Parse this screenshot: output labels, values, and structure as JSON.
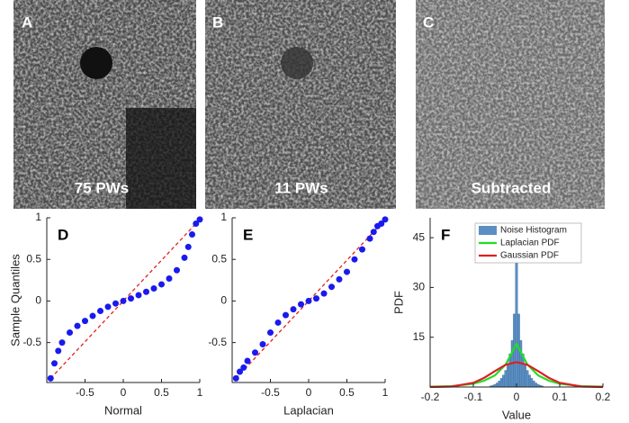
{
  "images": [
    {
      "letter": "A",
      "caption": "75 PWs"
    },
    {
      "letter": "B",
      "caption": "11 PWs"
    },
    {
      "letter": "C",
      "caption": "Subtracted"
    }
  ],
  "chart_data": [
    {
      "type": "scatter",
      "title": "D",
      "x_label": "Normal",
      "y_label": "Sample Quantiles",
      "color": "#1a1aee",
      "x": [
        -0.95,
        -0.9,
        -0.85,
        -0.8,
        -0.7,
        -0.6,
        -0.5,
        -0.4,
        -0.3,
        -0.2,
        -0.1,
        0,
        0.1,
        0.2,
        0.3,
        0.4,
        0.5,
        0.6,
        0.7,
        0.8,
        0.85,
        0.9,
        0.95,
        1
      ],
      "values": [
        -0.93,
        -0.75,
        -0.6,
        -0.5,
        -0.38,
        -0.3,
        -0.24,
        -0.18,
        -0.12,
        -0.07,
        -0.03,
        0,
        0.03,
        0.07,
        0.11,
        0.15,
        0.2,
        0.27,
        0.37,
        0.52,
        0.65,
        0.8,
        0.93,
        0.98
      ],
      "reference_line": {
        "x": [
          -0.95,
          0.95
        ],
        "values": [
          -0.93,
          0.93
        ],
        "color": "#e02020"
      },
      "xlim": [
        -1,
        1
      ],
      "ylim": [
        -0.98,
        1
      ],
      "xticks": [
        -0.5,
        0,
        0.5,
        1
      ],
      "yticks": [
        -0.5,
        0,
        0.5,
        1
      ]
    },
    {
      "type": "scatter",
      "title": "E",
      "x_label": "Laplacian",
      "color": "#1a1aee",
      "x": [
        -0.95,
        -0.9,
        -0.85,
        -0.8,
        -0.7,
        -0.6,
        -0.5,
        -0.4,
        -0.3,
        -0.2,
        -0.1,
        0,
        0.1,
        0.2,
        0.3,
        0.4,
        0.5,
        0.6,
        0.7,
        0.8,
        0.85,
        0.9,
        0.95,
        1
      ],
      "values": [
        -0.93,
        -0.85,
        -0.8,
        -0.72,
        -0.62,
        -0.52,
        -0.38,
        -0.26,
        -0.17,
        -0.1,
        -0.04,
        0,
        0.03,
        0.09,
        0.17,
        0.26,
        0.35,
        0.5,
        0.62,
        0.75,
        0.83,
        0.9,
        0.93,
        0.98
      ],
      "reference_line": {
        "x": [
          -0.95,
          0.95
        ],
        "values": [
          -0.93,
          0.93
        ],
        "color": "#e02020"
      },
      "xlim": [
        -1,
        1
      ],
      "ylim": [
        -0.98,
        1
      ],
      "xticks": [
        -0.5,
        0,
        0.5,
        1
      ],
      "yticks": [
        -0.5,
        0,
        0.5,
        1
      ]
    },
    {
      "type": "histogram",
      "title": "F",
      "x_label": "Value",
      "y_label": "PDF",
      "name": "Noise Histogram",
      "color": "#5b8fc4",
      "bins": [
        -0.0625,
        -0.0575,
        -0.0525,
        -0.0475,
        -0.0425,
        -0.0375,
        -0.0325,
        -0.0275,
        -0.0225,
        -0.0175,
        -0.0125,
        -0.0075,
        -0.0025,
        0.0025,
        0.0075,
        0.0125,
        0.0175,
        0.0225,
        0.0275,
        0.0325,
        0.0375,
        0.0425,
        0.0475,
        0.0525,
        0.0575,
        0.0625
      ],
      "counts": [
        0.3,
        0.5,
        0.8,
        1.2,
        1.8,
        2.6,
        3.6,
        5,
        7,
        10,
        14,
        22,
        47,
        22,
        14,
        10,
        7,
        5,
        3.6,
        2.6,
        1.8,
        1.2,
        0.8,
        0.5,
        0.3
      ],
      "series": [
        {
          "name": "Laplacian PDF",
          "color": "#22dd22",
          "x": [
            -0.2,
            -0.15,
            -0.1,
            -0.075,
            -0.05,
            -0.025,
            0,
            0.025,
            0.05,
            0.075,
            0.1,
            0.15,
            0.2
          ],
          "values": [
            0.07,
            0.26,
            0.97,
            1.9,
            3.5,
            6.8,
            13,
            6.8,
            3.5,
            1.9,
            0.97,
            0.26,
            0.07
          ]
        },
        {
          "name": "Gaussian PDF",
          "color": "#dd2020",
          "x": [
            -0.2,
            -0.15,
            -0.1,
            -0.075,
            -0.05,
            -0.025,
            0,
            0.025,
            0.05,
            0.075,
            0.1,
            0.15,
            0.2
          ],
          "values": [
            0,
            0.14,
            1.27,
            2.75,
            4.8,
            6.7,
            7.5,
            6.7,
            4.8,
            2.75,
            1.27,
            0.14,
            0
          ]
        }
      ],
      "xlim": [
        -0.2,
        0.2
      ],
      "ylim": [
        0,
        51
      ],
      "xticks": [
        -0.2,
        -0.1,
        0,
        0.1,
        0.2
      ],
      "yticks": [
        15,
        30,
        45
      ]
    }
  ]
}
